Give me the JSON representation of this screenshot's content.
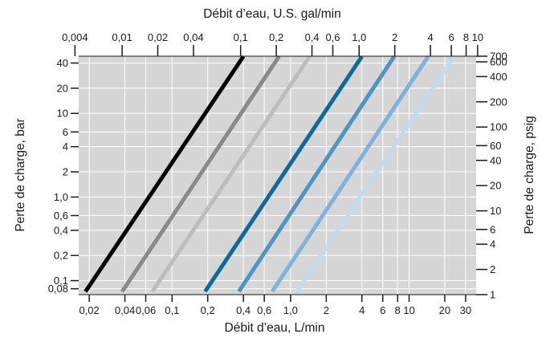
{
  "chart_data": {
    "type": "line",
    "scale": "log-log",
    "grid": true,
    "titles": {
      "top": "Débit d’eau, U.S. gal/min",
      "bottom": "Débit d’eau, L/min",
      "left": "Perte de charge, bar",
      "right": "Perte de charge, psig"
    },
    "axes": {
      "bottom": {
        "unit": "L/min",
        "range": [
          0.0163,
          36.8
        ],
        "ticks": [
          {
            "v": 0.02,
            "t": "0,02"
          },
          {
            "v": 0.04,
            "t": "0,04"
          },
          {
            "v": 0.06,
            "t": "0,06"
          },
          {
            "v": 0.1,
            "t": "0,1"
          },
          {
            "v": 0.2,
            "t": "0,2"
          },
          {
            "v": 0.4,
            "t": "0,4"
          },
          {
            "v": 0.6,
            "t": "0,6"
          },
          {
            "v": 1,
            "t": "1,0"
          },
          {
            "v": 2,
            "t": "2"
          },
          {
            "v": 4,
            "t": "4"
          },
          {
            "v": 6,
            "t": "6"
          },
          {
            "v": 8,
            "t": "8"
          },
          {
            "v": 10,
            "t": "10"
          },
          {
            "v": 20,
            "t": "20"
          },
          {
            "v": 30,
            "t": "30"
          }
        ]
      },
      "top": {
        "unit": "U.S. gal/min",
        "range": [
          0.0043,
          9.72
        ],
        "ticks": [
          {
            "v": 0.004,
            "t": "0,004"
          },
          {
            "v": 0.01,
            "t": "0,01"
          },
          {
            "v": 0.02,
            "t": "0,02"
          },
          {
            "v": 0.04,
            "t": "0,04"
          },
          {
            "v": 0.1,
            "t": "0,1"
          },
          {
            "v": 0.2,
            "t": "0,2"
          },
          {
            "v": 0.4,
            "t": "0,4"
          },
          {
            "v": 0.6,
            "t": "0,6"
          },
          {
            "v": 1,
            "t": "1,0"
          },
          {
            "v": 2,
            "t": "2"
          },
          {
            "v": 4,
            "t": "4"
          },
          {
            "v": 6,
            "t": "6"
          },
          {
            "v": 8,
            "t": "8"
          },
          {
            "v": 10,
            "t": "10"
          }
        ]
      },
      "left": {
        "unit": "bar",
        "range": [
          0.068,
          48.3
        ],
        "ticks": [
          {
            "v": 0.08,
            "t": "0,08"
          },
          {
            "v": 0.1,
            "t": "0,1"
          },
          {
            "v": 0.2,
            "t": "0,2"
          },
          {
            "v": 0.4,
            "t": "0,4"
          },
          {
            "v": 0.6,
            "t": "0,6"
          },
          {
            "v": 1,
            "t": "1,0"
          },
          {
            "v": 2,
            "t": "2"
          },
          {
            "v": 4,
            "t": "4"
          },
          {
            "v": 6,
            "t": "6"
          },
          {
            "v": 10,
            "t": "10"
          },
          {
            "v": 20,
            "t": "20"
          },
          {
            "v": 40,
            "t": "40"
          }
        ]
      },
      "right": {
        "unit": "psig",
        "range": [
          1,
          700
        ],
        "ticks": [
          {
            "v": 1,
            "t": "1"
          },
          {
            "v": 2,
            "t": "2"
          },
          {
            "v": 4,
            "t": "4"
          },
          {
            "v": 6,
            "t": "6"
          },
          {
            "v": 10,
            "t": "10"
          },
          {
            "v": 20,
            "t": "20"
          },
          {
            "v": 40,
            "t": "40"
          },
          {
            "v": 60,
            "t": "60"
          },
          {
            "v": 100,
            "t": "100"
          },
          {
            "v": 200,
            "t": "200"
          },
          {
            "v": 400,
            "t": "400"
          },
          {
            "v": 600,
            "t": "600"
          },
          {
            "v": 700,
            "t": "700"
          }
        ]
      }
    },
    "series": [
      {
        "color": "#000000",
        "x": [
          0.0186,
          0.4
        ],
        "y": [
          0.074,
          48
        ]
      },
      {
        "color": "#8a8a8a",
        "x": [
          0.0379,
          0.8
        ],
        "y": [
          0.074,
          48
        ]
      },
      {
        "color": "#bdbdbd",
        "x": [
          0.068,
          1.45
        ],
        "y": [
          0.074,
          48
        ]
      },
      {
        "color": "#0a6aa1",
        "x": [
          0.19,
          4.0
        ],
        "y": [
          0.074,
          48
        ]
      },
      {
        "color": "#4d94c8",
        "x": [
          0.366,
          7.5
        ],
        "y": [
          0.074,
          48
        ]
      },
      {
        "color": "#7fb2dc",
        "x": [
          0.7,
          14.5
        ],
        "y": [
          0.074,
          48
        ]
      },
      {
        "color": "#c2dcee",
        "x": [
          1.13,
          24.0
        ],
        "y": [
          0.074,
          48
        ]
      }
    ]
  }
}
